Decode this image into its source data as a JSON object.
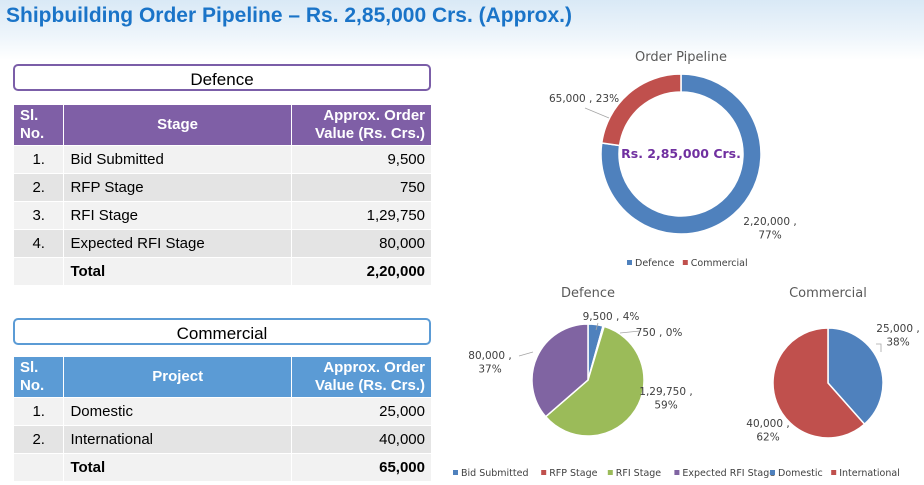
{
  "title": "Shipbuilding Order Pipeline – Rs. 2,85,000 Crs. (Approx.)",
  "defence_table": {
    "section_label": "Defence",
    "headers": [
      "Sl. No.",
      "Stage",
      "Approx. Order Value  (Rs. Crs.)"
    ],
    "rows": [
      {
        "no": "1.",
        "name": "Bid Submitted",
        "value": "9,500"
      },
      {
        "no": "2.",
        "name": "RFP Stage",
        "value": "750"
      },
      {
        "no": "3.",
        "name": "RFI Stage",
        "value": "1,29,750"
      },
      {
        "no": "4.",
        "name": "Expected RFI Stage",
        "value": "80,000"
      }
    ],
    "total_label": "Total",
    "total_value": "2,20,000"
  },
  "commercial_table": {
    "section_label": "Commercial",
    "headers": [
      "Sl. No.",
      "Project",
      "Approx. Order Value (Rs. Crs.)"
    ],
    "rows": [
      {
        "no": "1.",
        "name": "Domestic",
        "value": "25,000"
      },
      {
        "no": "2.",
        "name": "International",
        "value": "40,000"
      }
    ],
    "total_label": "Total",
    "total_value": "65,000"
  },
  "chart_data": [
    {
      "type": "pie",
      "variant": "donut",
      "title": "Order Pipeline",
      "center_label": "Rs. 2,85,000 Crs.",
      "categories": [
        "Defence",
        "Commercial"
      ],
      "values": [
        220000,
        65000
      ],
      "percents": [
        77,
        23
      ],
      "data_labels": [
        "2,20,000 ,\n77%",
        "65,000 , 23%"
      ],
      "colors": [
        "#4f81bd",
        "#c0504d"
      ],
      "legend_position": "bottom"
    },
    {
      "type": "pie",
      "title": "Defence",
      "categories": [
        "Bid Submitted",
        "RFP Stage",
        "RFI Stage",
        "Expected RFI Stage"
      ],
      "values": [
        9500,
        750,
        129750,
        80000
      ],
      "percents": [
        4,
        0,
        59,
        37
      ],
      "data_labels": [
        "9,500 , 4%",
        "750 , 0%",
        "1,29,750 ,\n59%",
        "80,000 ,\n37%"
      ],
      "colors": [
        "#4f81bd",
        "#c0504d",
        "#9bbb59",
        "#8064a2"
      ],
      "legend_position": "bottom"
    },
    {
      "type": "pie",
      "title": "Commercial",
      "categories": [
        "Domestic",
        "International"
      ],
      "values": [
        25000,
        40000
      ],
      "percents": [
        38,
        62
      ],
      "data_labels": [
        "25,000 ,\n38%",
        "40,000 ,\n62%"
      ],
      "colors": [
        "#4f81bd",
        "#c0504d"
      ],
      "legend_position": "bottom"
    }
  ]
}
